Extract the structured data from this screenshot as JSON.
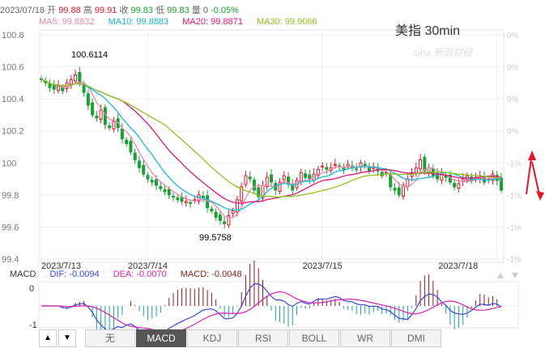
{
  "info": {
    "date": "2023/07/18",
    "open_label": "开",
    "open": "99.88",
    "high_label": "高",
    "high": "99.91",
    "close_label": "收",
    "close": "99.83",
    "low_label": "低",
    "low": "99.83",
    "vol_label": "量",
    "vol": "0",
    "change": "-0.05%"
  },
  "ma": {
    "ma5": "MA5: 99.8832",
    "ma10": "MA10: 99.8883",
    "ma20": "MA20: 99.8871",
    "ma30": "MA30: 99.9066",
    "ma5_color": "#e889b0",
    "ma10_color": "#1ab7d6",
    "ma20_color": "#e0157c",
    "ma30_color": "#8ec21f"
  },
  "symbol": "美指 30min",
  "watermark": "sina 新浪财经",
  "colors": {
    "up": "#e0162a",
    "down": "#1aa034"
  },
  "y_axis": [
    "100.8",
    "100.6",
    "100.4",
    "100.2",
    "100",
    "99.8",
    "99.6",
    "99.4"
  ],
  "right_axis": [
    "0%",
    "0%",
    "0%",
    "0%",
    "-1%",
    "-1%",
    "-1%",
    "-1%"
  ],
  "x_labels": [
    "2023/7/13",
    "2023/7/14",
    "2023/7/15",
    "2023/7/18"
  ],
  "annotations": {
    "high": "100.6114",
    "low": "99.5758"
  },
  "macd": {
    "label": "MACD",
    "dif": "DIF: -0.0094",
    "dea": "DEA: -0.0070",
    "macd": "MACD: -0.0048",
    "dif_color": "#3848d8",
    "dea_color": "#d81fb5",
    "macd_color": "#8b1a1a",
    "axis": [
      "0",
      "-1"
    ]
  },
  "tabs": [
    "无",
    "MACD",
    "KDJ",
    "RSI",
    "BOLL",
    "WR",
    "DMI"
  ],
  "active_tab": "MACD",
  "nav": {
    "up": "▲",
    "down": "▼"
  },
  "chart_data": {
    "type": "candlestick",
    "title": "美指 30min",
    "ylim": [
      99.4,
      100.8
    ],
    "x_labels": [
      "2023/7/13",
      "2023/7/14",
      "2023/7/15",
      "2023/7/18"
    ],
    "close": [
      100.52,
      100.5,
      100.47,
      100.46,
      100.48,
      100.45,
      100.5,
      100.52,
      100.55,
      100.5,
      100.44,
      100.36,
      100.3,
      100.28,
      100.33,
      100.24,
      100.22,
      100.26,
      100.22,
      100.15,
      100.12,
      100.07,
      100.02,
      99.97,
      99.93,
      99.9,
      99.88,
      99.86,
      99.84,
      99.82,
      99.8,
      99.79,
      99.77,
      99.76,
      99.76,
      99.75,
      99.77,
      99.8,
      99.78,
      99.72,
      99.7,
      99.66,
      99.64,
      99.62,
      99.67,
      99.7,
      99.77,
      99.85,
      99.92,
      99.9,
      99.83,
      99.79,
      99.86,
      99.91,
      99.88,
      99.83,
      99.88,
      99.92,
      99.87,
      99.83,
      99.89,
      99.94,
      99.91,
      99.9,
      99.93,
      99.96,
      99.98,
      99.96,
      99.97,
      99.99,
      99.98,
      99.96,
      99.99,
      99.97,
      99.96,
      100.0,
      99.98,
      99.95,
      99.97,
      99.95,
      99.92,
      99.94,
      99.85,
      99.83,
      99.8,
      99.86,
      99.9,
      99.94,
      99.97,
      100.02,
      99.95,
      99.97,
      99.92,
      99.9,
      99.93,
      99.91,
      99.88,
      99.85,
      99.87,
      99.9,
      99.92,
      99.89,
      99.91,
      99.92,
      99.88,
      99.9,
      99.93,
      99.89,
      99.83
    ],
    "ma5_last": 99.8832,
    "ma10_last": 99.8883,
    "ma20_last": 99.8871,
    "ma30_last": 99.9066,
    "high_mark": 100.6114,
    "low_mark": 99.5758,
    "macd_series": {
      "dif": "DIF: -0.0094",
      "dea": "DEA: -0.0070",
      "macd": "MACD: -0.0048"
    }
  }
}
